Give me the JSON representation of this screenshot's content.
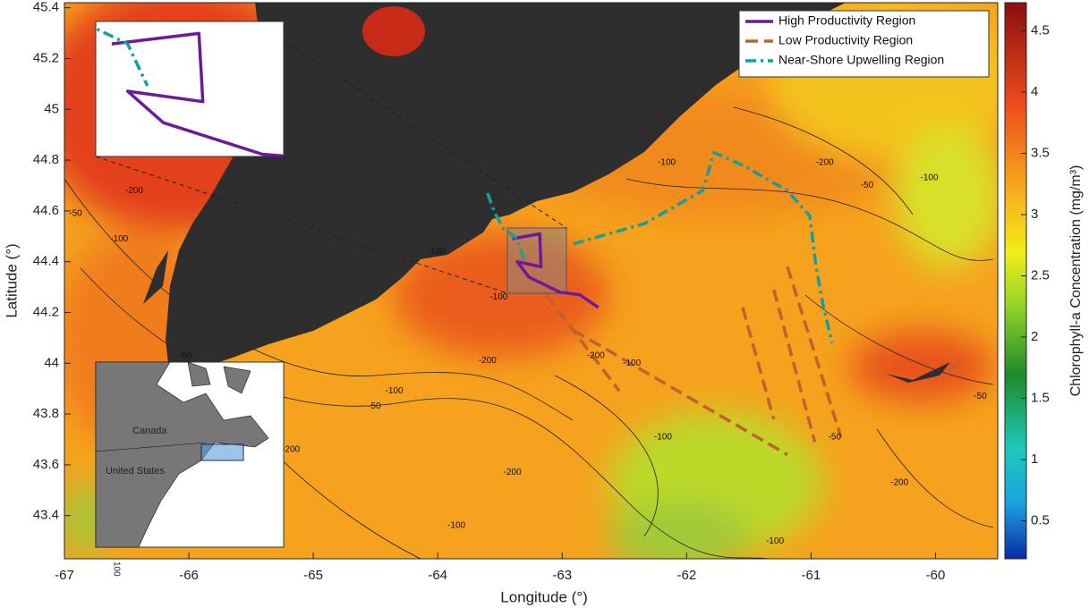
{
  "chart_data": {
    "type": "map",
    "xlabel": "Longitude (°)",
    "ylabel": "Latitude (°)",
    "xlim": [
      -67,
      -59.5
    ],
    "ylim": [
      43.23,
      45.42
    ],
    "xticks": [
      -67,
      -66,
      -65,
      -64,
      -63,
      -62,
      -61,
      -60
    ],
    "yticks": [
      43.4,
      43.6,
      43.8,
      44,
      44.2,
      44.4,
      44.6,
      44.8,
      45,
      45.2,
      45.4
    ],
    "colorbar": {
      "label": "Chlorophyll-a Concentration (mg/m³)",
      "lim": [
        0.19,
        4.73
      ],
      "ticks": [
        0.5,
        1,
        1.5,
        2,
        2.5,
        3,
        3.5,
        4,
        4.5
      ]
    },
    "legend": "upper right",
    "series": [
      {
        "name": "High Productivity Region",
        "color": "#6a1b9a",
        "dash": "solid",
        "x": [
          -63.4,
          -63.18,
          -63.17,
          -63.36,
          -63.27,
          -63.02,
          -62.86,
          -62.71
        ],
        "y": [
          44.49,
          44.51,
          44.38,
          44.4,
          44.34,
          44.28,
          44.27,
          44.22
        ]
      },
      {
        "name": "Low Productivity Region",
        "color": "#c0622b",
        "dash": "dashed",
        "x": [
          -63.13,
          -62.54,
          null,
          -62.91,
          -61.19,
          null,
          -61.55,
          -61.3,
          null,
          -61.3,
          -60.97,
          null,
          -61.19,
          -60.76,
          null,
          -59.89,
          -59.77
        ],
        "y": [
          44.27,
          43.89,
          null,
          44.13,
          43.64,
          null,
          44.22,
          43.78,
          null,
          44.29,
          43.69,
          null,
          44.38,
          43.71,
          null,
          43.97,
          44.02
        ]
      },
      {
        "name": "Near-Shore Upwelling Region",
        "color": "#13a0a0",
        "dash": "dashdot",
        "x": [
          -63.6,
          -63.54,
          -63.47,
          -63.36,
          -63.31,
          null,
          -62.91,
          -62.34,
          -61.87,
          -61.78,
          -61.55,
          -61.19,
          -61.01,
          -60.96,
          -60.9,
          -60.83
        ],
        "y": [
          44.67,
          44.59,
          44.53,
          44.49,
          44.41,
          null,
          44.47,
          44.55,
          44.68,
          44.83,
          44.78,
          44.68,
          44.58,
          44.38,
          44.22,
          44.08
        ]
      }
    ],
    "contour_labels": [
      {
        "value": -200,
        "lon": -66.44,
        "lat": 44.68
      },
      {
        "value": -100,
        "lon": -66.56,
        "lat": 44.49
      },
      {
        "value": -50,
        "lon": -66.91,
        "lat": 44.59
      },
      {
        "value": -50,
        "lon": -66.03,
        "lat": 44.03
      },
      {
        "value": -100,
        "lon": -64.35,
        "lat": 43.89
      },
      {
        "value": -50,
        "lon": -64.51,
        "lat": 43.83
      },
      {
        "value": -200,
        "lon": -63.6,
        "lat": 44.01
      },
      {
        "value": -100,
        "lon": -63.51,
        "lat": 44.26
      },
      {
        "value": -100,
        "lon": -64.01,
        "lat": 44.44
      },
      {
        "value": -200,
        "lon": -62.73,
        "lat": 44.03
      },
      {
        "value": -100,
        "lon": -62.44,
        "lat": 44.0
      },
      {
        "value": -100,
        "lon": -62.16,
        "lat": 44.79
      },
      {
        "value": -200,
        "lon": -60.89,
        "lat": 44.79
      },
      {
        "value": -50,
        "lon": -60.55,
        "lat": 44.7
      },
      {
        "value": -100,
        "lon": -60.05,
        "lat": 44.73
      },
      {
        "value": -50,
        "lon": -59.64,
        "lat": 43.87
      },
      {
        "value": -200,
        "lon": -60.29,
        "lat": 43.53
      },
      {
        "value": -100,
        "lon": -61.29,
        "lat": 43.3
      },
      {
        "value": -200,
        "lon": -65.18,
        "lat": 43.66
      },
      {
        "value": -200,
        "lon": -63.4,
        "lat": 43.57
      },
      {
        "value": -100,
        "lon": -63.85,
        "lat": 43.36
      },
      {
        "value": -50,
        "lon": -60.81,
        "lat": 43.71
      },
      {
        "value": -100,
        "lon": -62.19,
        "lat": 43.71
      }
    ],
    "inset_map": {
      "labels": [
        "Canada",
        "United States"
      ],
      "tick": "100"
    }
  }
}
